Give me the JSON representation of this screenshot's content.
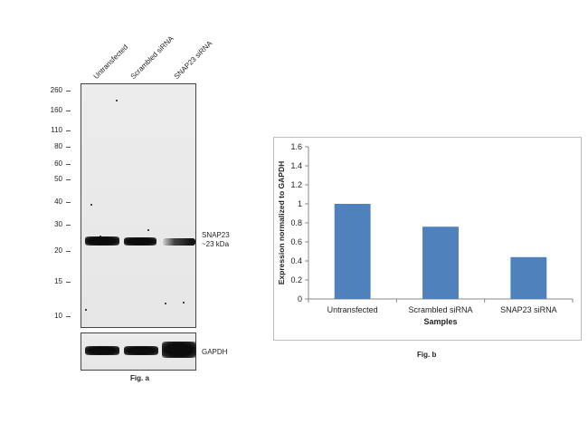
{
  "figure_a": {
    "lanes": [
      "Untransfected",
      "Scrambled siRNA",
      "SNAP23 siRNA"
    ],
    "markers": [
      "260",
      "160",
      "110",
      "80",
      "60",
      "50",
      "40",
      "30",
      "20",
      "15",
      "10"
    ],
    "target_label_line1": "SNAP23",
    "target_label_line2": "~23 kDa",
    "control_label": "GAPDH",
    "caption": "Fig. a"
  },
  "chart_data": {
    "type": "bar",
    "categories": [
      "Untransfected",
      "Scrambled siRNA",
      "SNAP23 siRNA"
    ],
    "values": [
      1.0,
      0.76,
      0.44
    ],
    "xlabel": "Samples",
    "ylabel": "Expression normalized to GAPDH",
    "ylim": [
      0,
      1.6
    ],
    "yticks": [
      "0",
      "0.2",
      "0.4",
      "0.6",
      "0.8",
      "1",
      "1.2",
      "1.4",
      "1.6"
    ],
    "bar_color": "#4f81bd",
    "grid": false,
    "legend": "none"
  },
  "figure_b": {
    "caption": "Fig. b"
  }
}
